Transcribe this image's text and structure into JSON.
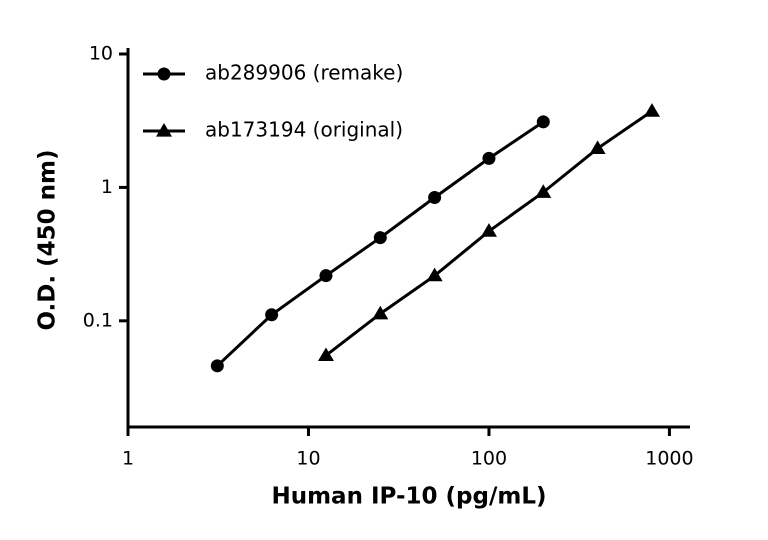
{
  "chart_data": {
    "type": "line",
    "x_label": "Human IP-10 (pg/mL)",
    "y_label": "O.D. (450 nm)",
    "log_x": true,
    "log_y": true,
    "legend": "upper-left",
    "xlim": [
      1,
      1300
    ],
    "xticks": [
      1,
      10,
      100,
      1000
    ],
    "ylim": [
      0.016,
      10
    ],
    "yticks": [
      0.1,
      1,
      10
    ],
    "series": [
      {
        "name": "ab289906 (remake)",
        "color": "#000000",
        "marker": "circle",
        "x": [
          3.125,
          6.25,
          12.5,
          25,
          50,
          100,
          200
        ],
        "values": [
          0.046,
          0.111,
          0.218,
          0.42,
          0.84,
          1.65,
          3.1
        ]
      },
      {
        "name": "ab173194 (original)",
        "color": "#000000",
        "marker": "triangle",
        "x": [
          12.5,
          25,
          50,
          100,
          200,
          400,
          800
        ],
        "values": [
          0.055,
          0.113,
          0.218,
          0.47,
          0.92,
          1.96,
          3.73
        ]
      }
    ]
  }
}
